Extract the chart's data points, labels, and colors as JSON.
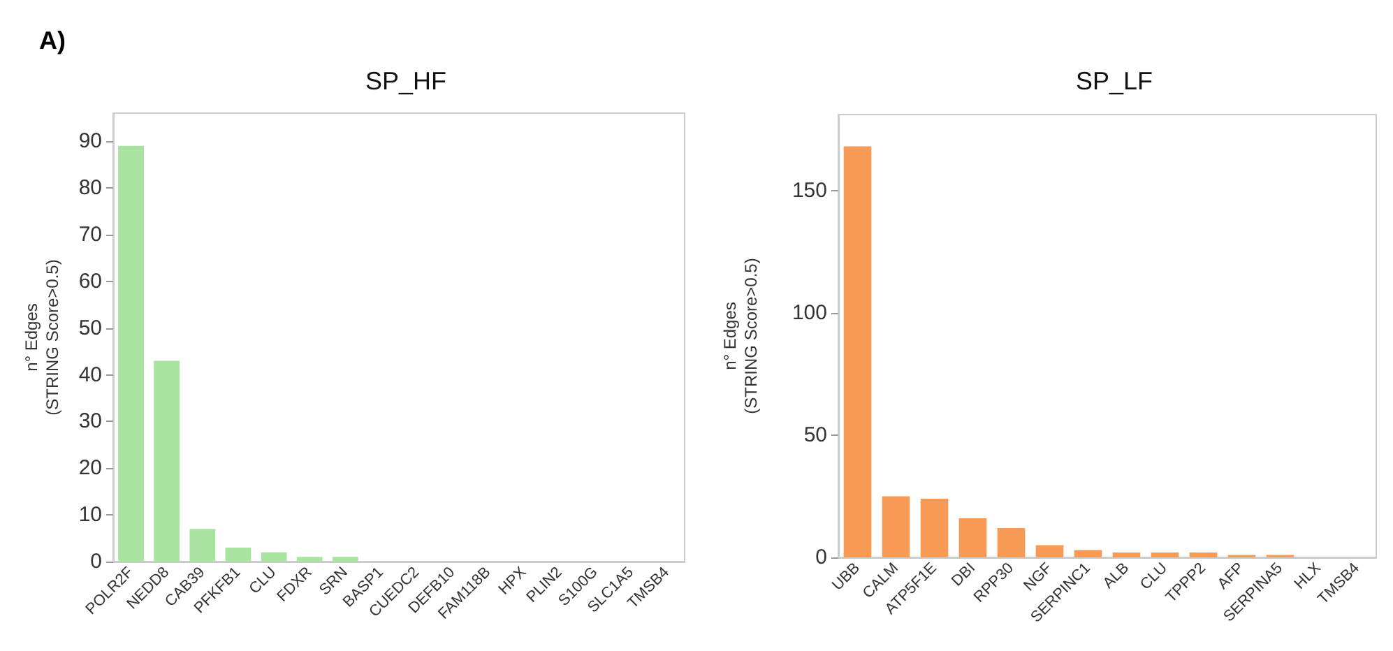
{
  "chart_data": [
    {
      "type": "bar",
      "title": "SP_HF",
      "ylabel": "n° Edges\n(STRING Score>0.5)",
      "annotations": [
        "A)"
      ],
      "categories": [
        "POLR2F",
        "NEDD8",
        "CAB39",
        "PFKFB1",
        "CLU",
        "FDXR",
        "SRN",
        "BASP1",
        "CUEDC2",
        "DEFB10",
        "FAM118B",
        "HPX",
        "PLIN2",
        "S100G",
        "SLC1A5",
        "TMSB4"
      ],
      "values": [
        89,
        43,
        7,
        3,
        2,
        1,
        1,
        0,
        0,
        0,
        0,
        0,
        0,
        0,
        0,
        0
      ],
      "color": "#a8e4a0",
      "ylim": [
        0,
        96
      ],
      "yticks": [
        0,
        10,
        20,
        30,
        40,
        50,
        60,
        70,
        80,
        90
      ],
      "grid": false
    },
    {
      "type": "bar",
      "title": "SP_LF",
      "ylabel": "n° Edges\n(STRING Score>0.5)",
      "categories": [
        "UBB",
        "CALM",
        "ATP5F1E",
        "DBI",
        "RPP30",
        "NGF",
        "SERPINC1",
        "ALB",
        "CLU",
        "TPPP2",
        "AFP",
        "SERPINA5",
        "HLX",
        "TMSB4"
      ],
      "values": [
        168,
        25,
        24,
        16,
        12,
        5,
        3,
        2,
        2,
        2,
        1,
        1,
        0,
        0
      ],
      "color": "#f79a55",
      "ylim": [
        0,
        181
      ],
      "yticks": [
        0,
        50,
        100,
        150
      ],
      "grid": false
    }
  ]
}
